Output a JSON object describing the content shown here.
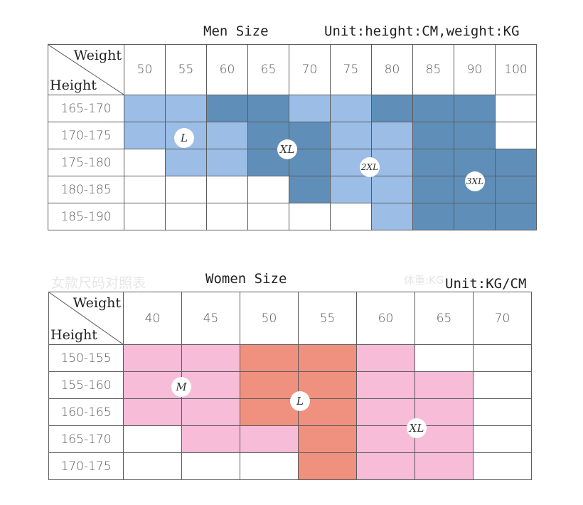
{
  "men": {
    "title": "Men Size",
    "unit": "Unit:height:CM,weight:KG",
    "corner": {
      "weight_label": "Weight",
      "height_label": "Height"
    },
    "weights": [
      "50",
      "55",
      "60",
      "65",
      "70",
      "75",
      "80",
      "85",
      "90",
      "100"
    ],
    "heights": [
      "165-170",
      "170-175",
      "175-180",
      "180-185",
      "185-190"
    ],
    "cells": [
      [
        "L",
        "L",
        "XL",
        "XL",
        "L",
        "L",
        "XL",
        "XL",
        "XL",
        ""
      ],
      [
        "L",
        "L",
        "L",
        "XL",
        "XL",
        "L",
        "L",
        "XL",
        "XL",
        ""
      ],
      [
        "",
        "L",
        "L",
        "XL",
        "XL",
        "L",
        "L",
        "XL",
        "XL",
        "XL"
      ],
      [
        "",
        "",
        "",
        "",
        "XL",
        "L",
        "L",
        "XL",
        "XL",
        "XL"
      ],
      [
        "",
        "",
        "",
        "",
        "",
        "",
        "L",
        "XL",
        "XL",
        "XL"
      ]
    ],
    "colors": {
      "L": "#9bbde6",
      "XL": "#5f8fb9",
      "empty": "#ffffff"
    },
    "badges": [
      "L",
      "XL",
      "2XL",
      "3XL"
    ]
  },
  "women": {
    "title": "Women Size",
    "unit": "Unit:KG/CM",
    "ghost_left": "女款尺码对照表",
    "ghost_right": "体重:KG",
    "corner": {
      "weight_label": "Weight",
      "height_label": "Height"
    },
    "weights": [
      "40",
      "45",
      "50",
      "55",
      "60",
      "65",
      "70"
    ],
    "heights": [
      "150-155",
      "155-160",
      "160-165",
      "165-170",
      "170-175"
    ],
    "cells": [
      [
        "M",
        "M",
        "L",
        "L",
        "M",
        "",
        ""
      ],
      [
        "M",
        "M",
        "L",
        "L",
        "M",
        "M",
        ""
      ],
      [
        "M",
        "M",
        "L",
        "L",
        "M",
        "M",
        ""
      ],
      [
        "",
        "M",
        "M",
        "L",
        "M",
        "M",
        ""
      ],
      [
        "",
        "",
        "",
        "L",
        "M",
        "M",
        ""
      ]
    ],
    "colors": {
      "M": "#f6bcd8",
      "L": "#f0907f",
      "empty": "#ffffff"
    },
    "badges": [
      "M",
      "L",
      "XL"
    ]
  }
}
